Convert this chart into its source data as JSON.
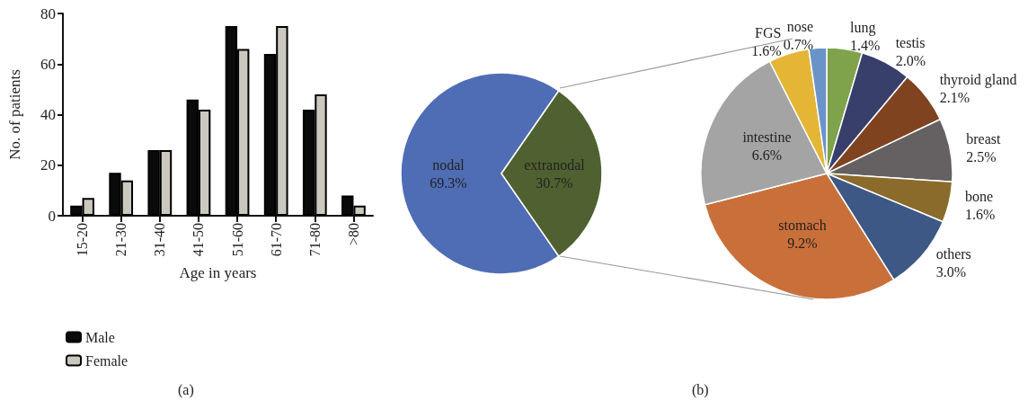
{
  "chart_data": [
    {
      "type": "bar",
      "categories": [
        "15-20",
        "21-30",
        "31-40",
        "41-50",
        "51-60",
        "61-70",
        "71-80",
        ">80"
      ],
      "xlabel": "Age in years",
      "ylabel": "No. of patients",
      "ylim": [
        0,
        80
      ],
      "yticks": [
        0,
        20,
        40,
        60,
        80
      ],
      "grid": false,
      "legend": "bottom left",
      "annotations": [
        "(a)"
      ],
      "series": [
        {
          "name": "Male",
          "color": "#0a0a0a",
          "values": [
            4,
            17,
            26,
            46,
            75,
            64,
            42,
            8
          ]
        },
        {
          "name": "Female",
          "color": "#cbc8c0",
          "values": [
            7,
            14,
            26,
            42,
            66,
            75,
            48,
            4
          ]
        }
      ]
    },
    {
      "type": "pie",
      "categories": [
        "nodal",
        "extranodal"
      ],
      "values": [
        69.3,
        30.7
      ],
      "colors": [
        "#4f6db5",
        "#4f6130"
      ],
      "value_labels": [
        "69.3%",
        "30.7%"
      ],
      "annotations": [
        "(b)"
      ]
    },
    {
      "type": "pie",
      "categories": [
        "lung",
        "testis",
        "thyroid gland",
        "breast",
        "bone",
        "others",
        "stomach",
        "intestine",
        "FGS",
        "nose"
      ],
      "values": [
        1.4,
        2.0,
        2.1,
        2.5,
        1.6,
        3.0,
        9.2,
        6.6,
        1.6,
        0.7
      ],
      "colors": [
        "#7ea34a",
        "#383f6b",
        "#80431f",
        "#656163",
        "#8a6b2b",
        "#3d5884",
        "#c9703a",
        "#a4a4a4",
        "#e5b535",
        "#6a94c8"
      ],
      "value_labels": [
        "1.4%",
        "2.0%",
        "2.1%",
        "2.5%",
        "1.6%",
        "3.0%",
        "9.2%",
        "6.6%",
        "1.6%",
        "0.7%"
      ]
    }
  ]
}
